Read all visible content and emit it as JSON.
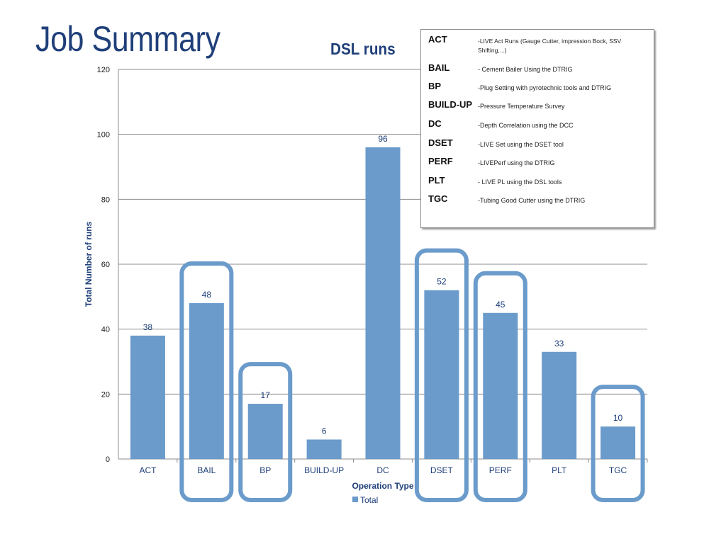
{
  "slide": {
    "title": "Job Summary"
  },
  "chart_data": {
    "type": "bar",
    "title": "DSL runs",
    "xlabel": "Operation Type",
    "ylabel": "Total Number of runs",
    "categories": [
      "ACT",
      "BAIL",
      "BP",
      "BUILD-UP",
      "DC",
      "DSET",
      "PERF",
      "PLT",
      "TGC"
    ],
    "series": [
      {
        "name": "Total",
        "values": [
          38,
          48,
          17,
          6,
          96,
          52,
          45,
          33,
          10
        ],
        "color": "#6a9bcb"
      }
    ],
    "data_labels": [
      "38",
      "48",
      "17",
      "6",
      "96",
      "52",
      "45",
      "33",
      "10"
    ],
    "ylim": [
      0,
      120
    ],
    "yticks": [
      "0",
      "20",
      "40",
      "60",
      "80",
      "100",
      "120"
    ],
    "grid": true,
    "legend_position": "bottom",
    "highlighted_categories": [
      "BAIL",
      "BP",
      "DSET",
      "PERF",
      "TGC"
    ],
    "highlight_color": "#6a9bcb"
  },
  "glossary": [
    {
      "term": "ACT",
      "desc": "-LIVE Act  Runs (Gauge Cutter, impression Bock, SSV Shifting,...)"
    },
    {
      "term": "BAIL",
      "desc": "- Cement Bailer Using the DTRIG"
    },
    {
      "term": "BP",
      "desc": "-Plug Setting with pyrotechnic tools and DTRIG"
    },
    {
      "term": "BUILD-UP",
      "desc": "-Pressure Temperature Survey"
    },
    {
      "term": "DC",
      "desc": "-Depth Correlation using the DCC"
    },
    {
      "term": "DSET",
      "desc": "-LIVE Set using the DSET  tool"
    },
    {
      "term": "PERF",
      "desc": "-LIVEPerf using the DTRIG"
    },
    {
      "term": "PLT",
      "desc": "- LIVE PL using the DSL tools"
    },
    {
      "term": "TGC",
      "desc": "-Tubing Good Cutter using the DTRIG"
    }
  ]
}
